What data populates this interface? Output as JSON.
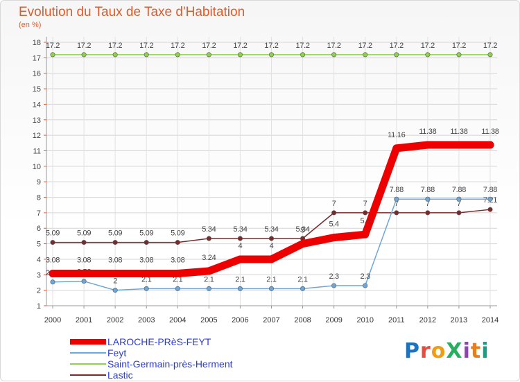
{
  "header": {
    "title": "Evolution du Taux de Taxe d'Habitation",
    "subtitle": "(en %)"
  },
  "logo": {
    "text": "ProXiti",
    "colors": [
      "#1e73be",
      "#e74c3c",
      "#f39c12",
      "#27ae60",
      "#8e44ad",
      "#e67e22",
      "#16a085"
    ]
  },
  "chart_data": {
    "type": "line",
    "title": "Evolution du Taux de Taxe d'Habitation",
    "ylabel": "(en %)",
    "xlabel": "",
    "ylim": [
      1,
      18
    ],
    "yticks": [
      1,
      2,
      3,
      4,
      5,
      6,
      7,
      8,
      9,
      10,
      11,
      12,
      13,
      14,
      15,
      16,
      17,
      18
    ],
    "categories": [
      "2000",
      "2001",
      "2002",
      "2003",
      "2004",
      "2005",
      "2006",
      "2007",
      "2008",
      "2009",
      "2010",
      "2011",
      "2012",
      "2013",
      "2014"
    ],
    "grid": true,
    "legend_position": "bottom-left",
    "series": [
      {
        "name": "Saint-Germain-près-Herment",
        "color": "#8fd14f",
        "values": [
          17.2,
          17.2,
          17.2,
          17.2,
          17.2,
          17.2,
          17.2,
          17.2,
          17.2,
          17.2,
          17.2,
          17.2,
          17.2,
          17.2,
          17.2
        ],
        "labels": [
          "17.2",
          "17.2",
          "17.2",
          "17.2",
          "17.2",
          "17.2",
          "17.2",
          "17.2",
          "17.2",
          "17.2",
          "17.2",
          "17.2",
          "17.2",
          "17.2",
          "17.2"
        ]
      },
      {
        "name": "Lastic",
        "color": "#7a2a2a",
        "values": [
          5.09,
          5.09,
          5.09,
          5.09,
          5.09,
          5.34,
          5.34,
          5.34,
          5.34,
          7,
          7,
          7,
          7,
          7,
          7.21
        ],
        "labels": [
          "5.09",
          "5.09",
          "5.09",
          "5.09",
          "5.09",
          "5.34",
          "5.34",
          "5.34",
          "5.34",
          "7",
          "7",
          "7",
          "7",
          "7",
          "7.21"
        ]
      },
      {
        "name": "Feyt",
        "color": "#6ea6d8",
        "values": [
          2.53,
          2.58,
          2,
          2.1,
          2.1,
          2.1,
          2.1,
          2.1,
          2.1,
          2.3,
          2.3,
          7.88,
          7.88,
          7.88,
          7.88
        ],
        "labels": [
          "2.53",
          "2.58",
          "2",
          "2.1",
          "2.1",
          "2.1",
          "2.1",
          "2.1",
          "2.1",
          "2.3",
          "2.3",
          "7.88",
          "7.88",
          "7.88",
          "7.88"
        ]
      },
      {
        "name": "LAROCHE-PRèS-FEYT",
        "color": "#ee0000",
        "values": [
          3.08,
          3.08,
          3.08,
          3.08,
          3.08,
          3.24,
          4,
          4,
          5,
          5.4,
          5.6,
          11.16,
          11.38,
          11.38,
          11.38
        ],
        "labels": [
          "3.08",
          "3.08",
          "3.08",
          "3.08",
          "3.08",
          "3.24",
          "4",
          "4",
          "5",
          "5.4",
          "5.6",
          "11.16",
          "11.38",
          "11.38",
          "11.38"
        ]
      }
    ]
  },
  "legend": [
    {
      "name": "LAROCHE-PRèS-FEYT",
      "color": "#ee0000",
      "thick": true
    },
    {
      "name": "Feyt",
      "color": "#6ea6d8",
      "thick": false
    },
    {
      "name": "Saint-Germain-près-Herment",
      "color": "#8fd14f",
      "thick": false
    },
    {
      "name": "Lastic",
      "color": "#7a2a2a",
      "thick": false
    }
  ]
}
